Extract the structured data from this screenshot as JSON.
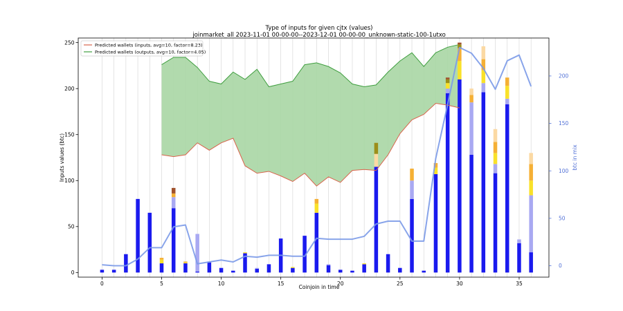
{
  "chart_data": {
    "type": "bar",
    "title": "Type of inputs for given cjtx (values)",
    "subtitle": "joinmarket_all 2023-11-01 00-00-00--2023-12-01 00-00-00_unknown-static-100-1utxo",
    "xlabel": "Coinjoin in time",
    "ylabel": "Inputs values (btc)",
    "y2label": "btc in mix",
    "xlim": [
      -2,
      37.5
    ],
    "ylim": [
      -5,
      255
    ],
    "y2lim": [
      -12,
      240
    ],
    "xticks": [
      0,
      5,
      10,
      15,
      20,
      25,
      30,
      35
    ],
    "yticks": [
      0,
      50,
      100,
      150,
      200,
      250
    ],
    "y2ticks": [
      0,
      50,
      100,
      150,
      200
    ],
    "grid": "vertical lines at each coinjoin",
    "legend_position": "top-left",
    "legend": [
      {
        "label": "Predicted wallets (inputs, avg=10, factor=8.23)",
        "color": "#d9634b",
        "kind": "line"
      },
      {
        "label": "Predicted wallets (outputs, avg=10, factor=4.05)",
        "color": "#3f9e3f",
        "kind": "line"
      }
    ],
    "bar_segments": [
      {
        "key": "fresh",
        "color": "#1a1aee"
      },
      {
        "key": "remix",
        "color": "#a9a9f2"
      },
      {
        "key": "yellow",
        "color": "#f9e12a"
      },
      {
        "key": "orange",
        "color": "#f5b035"
      },
      {
        "key": "light",
        "color": "#fbd9a3"
      },
      {
        "key": "olive",
        "color": "#9c8e1a"
      },
      {
        "key": "brown",
        "color": "#a0522d"
      }
    ],
    "bars": [
      {
        "x": 0,
        "fresh": 3
      },
      {
        "x": 1,
        "fresh": 3
      },
      {
        "x": 2,
        "fresh": 20
      },
      {
        "x": 3,
        "fresh": 80
      },
      {
        "x": 4,
        "fresh": 65
      },
      {
        "x": 5,
        "fresh": 10,
        "yellow": 4,
        "orange": 2
      },
      {
        "x": 6,
        "fresh": 70,
        "remix": 12,
        "orange": 4,
        "brown": 6
      },
      {
        "x": 7,
        "fresh": 10,
        "yellow": 1,
        "orange": 1
      },
      {
        "x": 8,
        "fresh": 1,
        "remix": 41
      },
      {
        "x": 9,
        "fresh": 11,
        "remix": 1
      },
      {
        "x": 10,
        "fresh": 5
      },
      {
        "x": 11,
        "fresh": 2
      },
      {
        "x": 12,
        "fresh": 21,
        "yellow": 1
      },
      {
        "x": 13,
        "fresh": 4,
        "remix": 1
      },
      {
        "x": 14,
        "fresh": 9
      },
      {
        "x": 15,
        "fresh": 37
      },
      {
        "x": 16,
        "fresh": 5,
        "yellow": 1
      },
      {
        "x": 17,
        "fresh": 40
      },
      {
        "x": 18,
        "fresh": 65,
        "yellow": 10,
        "orange": 5
      },
      {
        "x": 19,
        "fresh": 8,
        "remix": 1
      },
      {
        "x": 20,
        "fresh": 3
      },
      {
        "x": 21,
        "fresh": 2
      },
      {
        "x": 22,
        "fresh": 9,
        "yellow": 1
      },
      {
        "x": 23,
        "fresh": 115,
        "olive": 12,
        "light": 14
      },
      {
        "x": 24,
        "fresh": 20
      },
      {
        "x": 25,
        "fresh": 5
      },
      {
        "x": 26,
        "fresh": 80,
        "remix": 20,
        "orange": 13
      },
      {
        "x": 27,
        "fresh": 2
      },
      {
        "x": 28,
        "fresh": 107,
        "yellow": 7,
        "orange": 5
      },
      {
        "x": 29,
        "fresh": 195,
        "remix": 5,
        "yellow": 6,
        "olive": 4,
        "brown": 2
      },
      {
        "x": 30,
        "fresh": 210,
        "yellow": 20,
        "orange": 14,
        "olive": 4,
        "brown": 2
      },
      {
        "x": 31,
        "fresh": 128,
        "remix": 57,
        "light": 7,
        "orange": 8
      },
      {
        "x": 32,
        "fresh": 196,
        "remix": 10,
        "yellow": 14,
        "orange": 12,
        "light": 14
      },
      {
        "x": 33,
        "fresh": 108,
        "remix": 10,
        "yellow": 12,
        "orange": 12,
        "light": 14
      },
      {
        "x": 34,
        "fresh": 183,
        "remix": 6,
        "yellow": 14,
        "orange": 9
      },
      {
        "x": 35,
        "fresh": 32,
        "remix": 4
      },
      {
        "x": 36,
        "fresh": 22,
        "remix": 62,
        "yellow": 16,
        "orange": 18,
        "light": 12
      }
    ],
    "inputs_line": {
      "x": [
        5,
        6,
        7,
        8,
        9,
        10,
        11,
        12,
        13,
        14,
        15,
        16,
        17,
        18,
        19,
        20,
        21,
        22,
        23,
        24,
        25,
        26,
        27,
        28,
        29,
        30
      ],
      "y": [
        128,
        126,
        128,
        141,
        133,
        141,
        146,
        116,
        108,
        110,
        105,
        99,
        108,
        94,
        104,
        98,
        111,
        112,
        111,
        128,
        151,
        166,
        172,
        184,
        182,
        179
      ]
    },
    "outputs_line": {
      "x": [
        5,
        6,
        7,
        8,
        9,
        10,
        11,
        12,
        13,
        14,
        15,
        16,
        17,
        18,
        19,
        20,
        21,
        22,
        23,
        24,
        25,
        26,
        27,
        28,
        29,
        30
      ],
      "y": [
        226,
        234,
        234,
        223,
        208,
        205,
        218,
        210,
        221,
        202,
        205,
        208,
        226,
        228,
        224,
        217,
        205,
        202,
        204,
        218,
        230,
        239,
        224,
        239,
        245,
        248
      ]
    },
    "btc_in_mix": {
      "x": [
        0,
        1,
        2,
        3,
        4,
        5,
        6,
        7,
        8,
        9,
        10,
        11,
        12,
        13,
        14,
        15,
        16,
        17,
        18,
        19,
        20,
        21,
        22,
        23,
        24,
        25,
        26,
        27,
        28,
        29,
        30,
        31,
        32,
        33,
        34,
        35,
        36
      ],
      "y": [
        1,
        0,
        0,
        7,
        19,
        19,
        41,
        43,
        2,
        4,
        6,
        4,
        10,
        9,
        11,
        11,
        10,
        10,
        29,
        28,
        28,
        28,
        31,
        44,
        47,
        47,
        26,
        26,
        113,
        170,
        230,
        224,
        208,
        186,
        216,
        222,
        189
      ]
    },
    "colors": {
      "fill": "#a9d6a4",
      "fill_edge": "#3f9e3f",
      "inputs_line": "#d9634b",
      "btc_line": "#7b9ae8",
      "right_axis": "#4f6fd6",
      "grid": "#d3d3d3"
    }
  }
}
